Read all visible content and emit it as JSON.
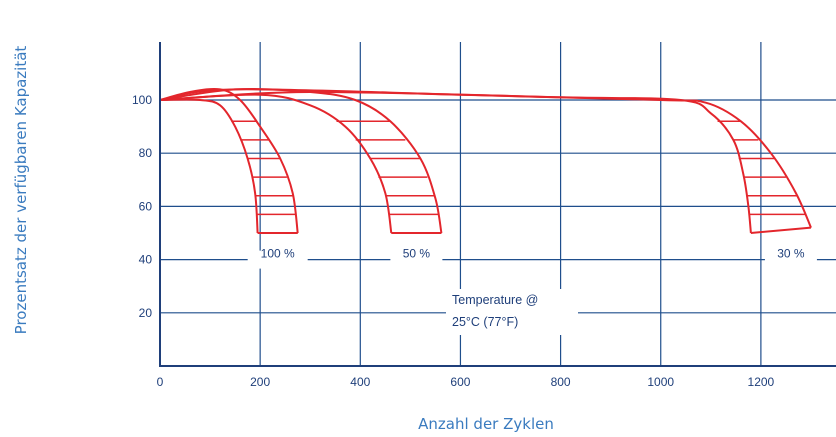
{
  "chart_data": {
    "type": "area",
    "title": "",
    "xlabel": "Anzahl der Zyklen",
    "ylabel": "Prozentsatz der verfügbaren Kapazität",
    "xlim": [
      0,
      1350
    ],
    "ylim": [
      0,
      120
    ],
    "x_ticks": [
      0,
      200,
      400,
      600,
      800,
      1000,
      1200
    ],
    "y_ticks": [
      20,
      40,
      60,
      80,
      100
    ],
    "grid": true,
    "colors": {
      "grid": "#1f4e8c",
      "axis": "#1f3f7a",
      "curve": "#e3262c",
      "label": "#3a7bbf"
    },
    "annotation": {
      "line1": "Temperature @",
      "line2": "25°C (77°F)"
    },
    "series": [
      {
        "name": "100 %",
        "band": {
          "upper": [
            [
              0,
              100
            ],
            [
              60,
              103
            ],
            [
              120,
              104
            ],
            [
              160,
              100
            ],
            [
              200,
              90
            ],
            [
              240,
              78
            ],
            [
              265,
              65
            ],
            [
              275,
              50
            ]
          ],
          "lower": [
            [
              0,
              100
            ],
            [
              80,
              100
            ],
            [
              120,
              98
            ],
            [
              150,
              90
            ],
            [
              175,
              78
            ],
            [
              190,
              65
            ],
            [
              195,
              50
            ]
          ],
          "end_y": 50
        }
      },
      {
        "name": "50 %",
        "band": {
          "upper": [
            [
              0,
              100
            ],
            [
              150,
              104
            ],
            [
              300,
              103
            ],
            [
              390,
              100
            ],
            [
              460,
              92
            ],
            [
              520,
              78
            ],
            [
              550,
              63
            ],
            [
              562,
              50
            ]
          ],
          "lower": [
            [
              0,
              100
            ],
            [
              200,
              102
            ],
            [
              300,
              98
            ],
            [
              370,
              90
            ],
            [
              420,
              78
            ],
            [
              450,
              65
            ],
            [
              462,
              50
            ]
          ],
          "end_y": 50
        }
      },
      {
        "name": "30 %",
        "band": {
          "upper": [
            [
              0,
              100
            ],
            [
              150,
              104
            ],
            [
              600,
              102
            ],
            [
              1000,
              100
            ],
            [
              1090,
              99
            ],
            [
              1160,
              92
            ],
            [
              1220,
              80
            ],
            [
              1270,
              65
            ],
            [
              1300,
              52
            ]
          ],
          "lower": [
            [
              0,
              100
            ],
            [
              300,
              103
            ],
            [
              800,
              101
            ],
            [
              1040,
              100
            ],
            [
              1100,
              95
            ],
            [
              1145,
              85
            ],
            [
              1165,
              72
            ],
            [
              1175,
              60
            ],
            [
              1180,
              50
            ]
          ],
          "end_y": 50
        }
      }
    ]
  }
}
